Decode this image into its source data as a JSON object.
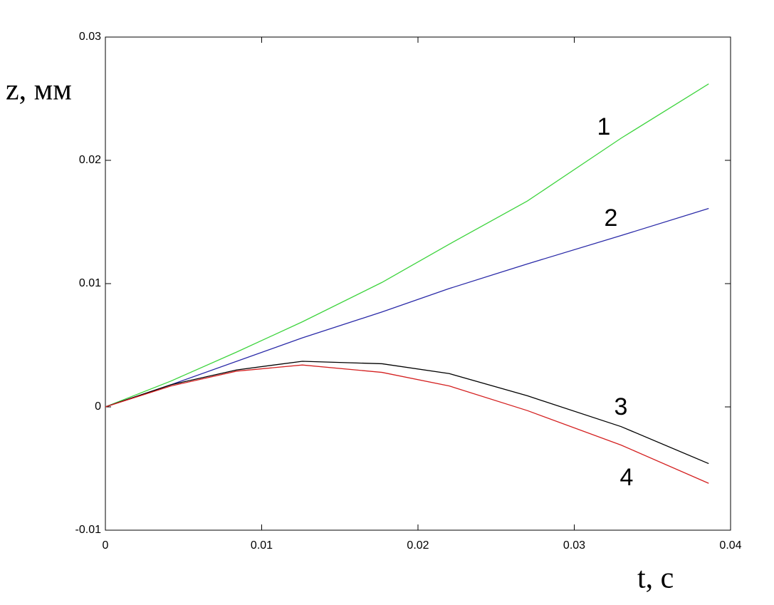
{
  "chart_data": {
    "type": "line",
    "x_label": "t, с",
    "y_label": "z, мм",
    "x": [
      0,
      0.0042,
      0.0084,
      0.0126,
      0.0177,
      0.022,
      0.027,
      0.033,
      0.0386
    ],
    "series": [
      {
        "name": "1",
        "color": "#3ed43e",
        "values": [
          0,
          0.0021,
          0.00445,
          0.0069,
          0.0101,
          0.0132,
          0.0167,
          0.0218,
          0.0262
        ]
      },
      {
        "name": "2",
        "color": "#2a2aa8",
        "values": [
          0,
          0.0018,
          0.0037,
          0.0056,
          0.0077,
          0.0096,
          0.0116,
          0.0139,
          0.0161
        ]
      },
      {
        "name": "3",
        "color": "#000000",
        "values": [
          0,
          0.0018,
          0.003,
          0.0037,
          0.0035,
          0.0027,
          0.0009,
          -0.0016,
          -0.0046
        ]
      },
      {
        "name": "4",
        "color": "#d42020",
        "values": [
          0,
          0.0017,
          0.0029,
          0.0034,
          0.0028,
          0.0017,
          -0.0003,
          -0.0031,
          -0.0062
        ]
      }
    ],
    "xlim": [
      0,
      0.04
    ],
    "ylim": [
      -0.01,
      0.03
    ],
    "xticks": [
      0,
      0.01,
      0.02,
      0.03,
      0.04
    ],
    "yticks": [
      -0.01,
      0,
      0.01,
      0.02,
      0.03
    ]
  }
}
